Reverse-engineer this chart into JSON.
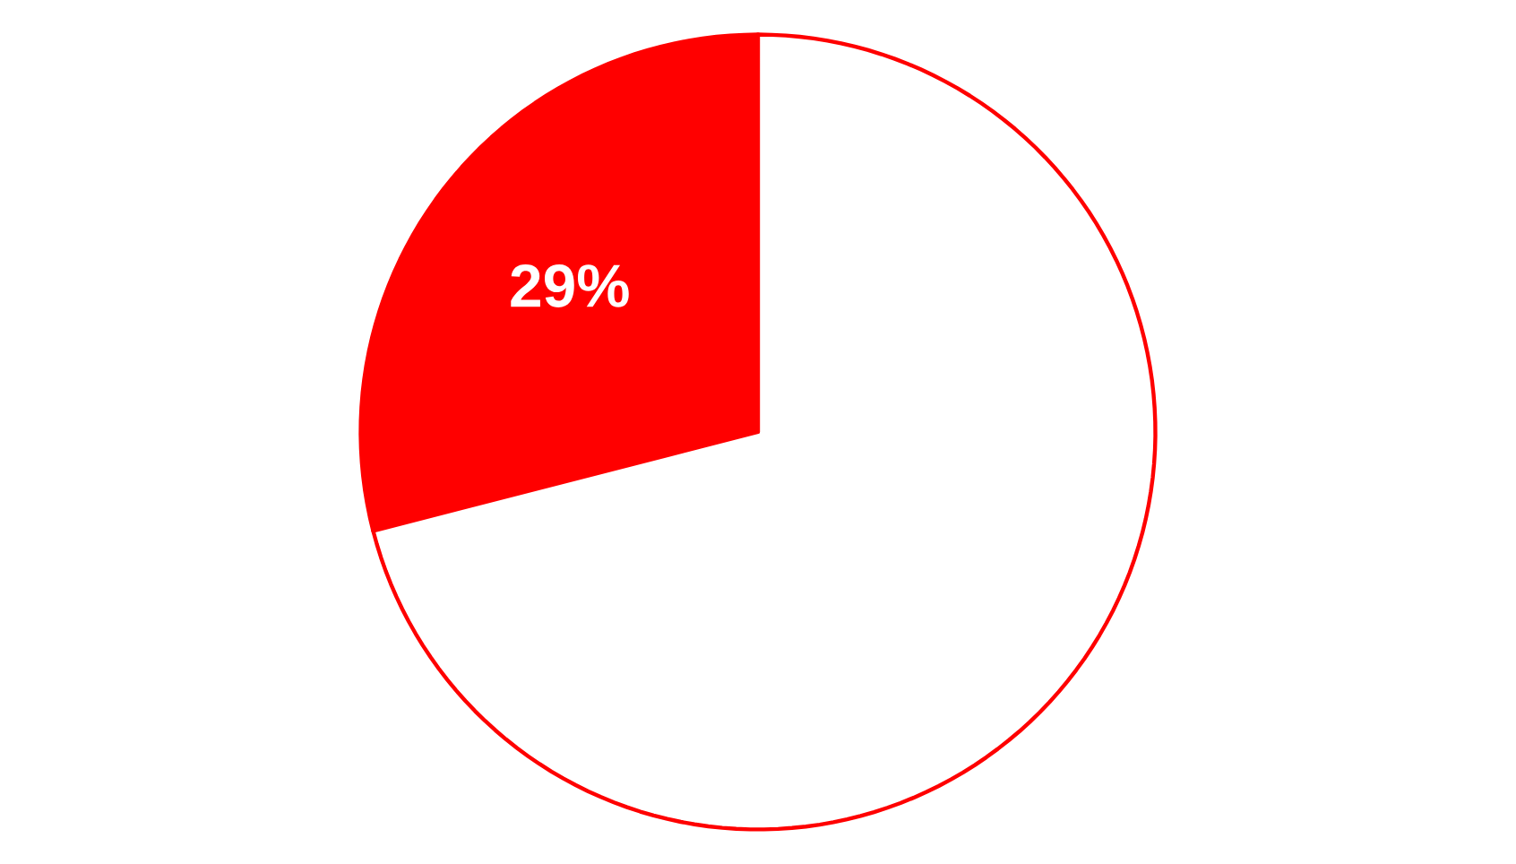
{
  "chart_data": {
    "type": "pie",
    "categories": [
      null,
      null
    ],
    "values": [
      29,
      71
    ],
    "colors": [
      "#ff0000",
      "#ffffff"
    ],
    "value_labels": [
      "29%",
      null
    ]
  }
}
